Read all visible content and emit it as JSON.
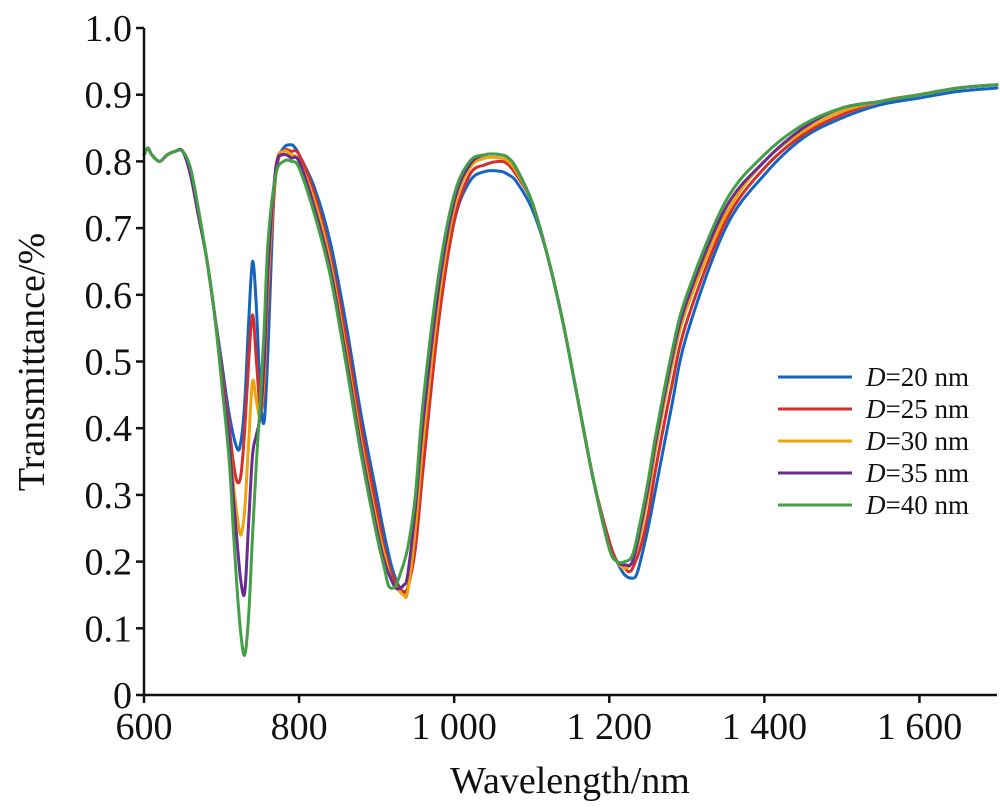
{
  "chart_data": {
    "type": "line",
    "xlabel": "Wavelength/nm",
    "ylabel": "Transmittance/%",
    "xlim": [
      600,
      1700
    ],
    "ylim": [
      0,
      1.0
    ],
    "x_ticks": [
      600,
      800,
      1000,
      1200,
      1400,
      1600
    ],
    "x_tick_labels": [
      "600",
      "800",
      "1 000",
      "1 200",
      "1 400",
      "1 600"
    ],
    "y_ticks": [
      0,
      0.1,
      0.2,
      0.3,
      0.4,
      0.5,
      0.6,
      0.7,
      0.8,
      0.9,
      1.0
    ],
    "y_tick_labels": [
      "0",
      "0.1",
      "0.2",
      "0.3",
      "0.4",
      "0.5",
      "0.6",
      "0.7",
      "0.8",
      "0.9",
      "1.0"
    ],
    "legend": {
      "placement": "right"
    },
    "series": [
      {
        "name": "D=20 nm",
        "italic": "D",
        "suffix": "=20 nm",
        "color": "#1565c0",
        "x": [
          600,
          605,
          610,
          620,
          630,
          640,
          650,
          660,
          670,
          680,
          690,
          700,
          710,
          720,
          725,
          730,
          735,
          740,
          745,
          750,
          755,
          760,
          765,
          770,
          780,
          790,
          795,
          800,
          820,
          840,
          860,
          880,
          900,
          910,
          920,
          930,
          935,
          940,
          945,
          950,
          960,
          980,
          1000,
          1020,
          1040,
          1060,
          1070,
          1080,
          1100,
          1120,
          1140,
          1160,
          1180,
          1200,
          1210,
          1220,
          1230,
          1235,
          1240,
          1250,
          1260,
          1280,
          1300,
          1350,
          1400,
          1450,
          1500,
          1550,
          1600,
          1650,
          1700
        ],
        "y": [
          0.81,
          0.82,
          0.81,
          0.8,
          0.81,
          0.815,
          0.815,
          0.78,
          0.72,
          0.66,
          0.58,
          0.5,
          0.42,
          0.37,
          0.38,
          0.44,
          0.56,
          0.65,
          0.58,
          0.45,
          0.41,
          0.52,
          0.68,
          0.79,
          0.82,
          0.825,
          0.82,
          0.81,
          0.76,
          0.68,
          0.56,
          0.42,
          0.3,
          0.24,
          0.19,
          0.16,
          0.155,
          0.16,
          0.19,
          0.24,
          0.36,
          0.57,
          0.71,
          0.77,
          0.785,
          0.785,
          0.78,
          0.77,
          0.73,
          0.66,
          0.56,
          0.44,
          0.32,
          0.23,
          0.2,
          0.18,
          0.175,
          0.18,
          0.2,
          0.25,
          0.31,
          0.43,
          0.54,
          0.7,
          0.78,
          0.835,
          0.865,
          0.885,
          0.895,
          0.905,
          0.91
        ]
      },
      {
        "name": "D=25 nm",
        "italic": "D",
        "suffix": "=25 nm",
        "color": "#d32f2f",
        "x": [
          600,
          605,
          610,
          620,
          630,
          640,
          650,
          660,
          670,
          680,
          690,
          700,
          710,
          715,
          720,
          725,
          730,
          735,
          740,
          745,
          750,
          755,
          760,
          770,
          780,
          790,
          800,
          820,
          840,
          860,
          880,
          900,
          910,
          920,
          930,
          935,
          940,
          950,
          960,
          980,
          1000,
          1020,
          1040,
          1060,
          1070,
          1080,
          1100,
          1120,
          1140,
          1160,
          1180,
          1200,
          1210,
          1220,
          1225,
          1230,
          1240,
          1250,
          1260,
          1280,
          1300,
          1350,
          1400,
          1450,
          1500,
          1550,
          1600,
          1650,
          1700
        ],
        "y": [
          0.81,
          0.82,
          0.81,
          0.8,
          0.81,
          0.815,
          0.815,
          0.78,
          0.72,
          0.66,
          0.58,
          0.49,
          0.4,
          0.35,
          0.32,
          0.33,
          0.4,
          0.5,
          0.57,
          0.5,
          0.43,
          0.46,
          0.6,
          0.78,
          0.815,
          0.815,
          0.81,
          0.75,
          0.66,
          0.54,
          0.4,
          0.28,
          0.22,
          0.18,
          0.16,
          0.155,
          0.16,
          0.22,
          0.34,
          0.56,
          0.71,
          0.78,
          0.795,
          0.8,
          0.795,
          0.78,
          0.74,
          0.66,
          0.56,
          0.44,
          0.32,
          0.23,
          0.2,
          0.19,
          0.185,
          0.19,
          0.22,
          0.27,
          0.34,
          0.46,
          0.56,
          0.71,
          0.79,
          0.84,
          0.87,
          0.89,
          0.9,
          0.91,
          0.915
        ]
      },
      {
        "name": "D=30 nm",
        "italic": "D",
        "suffix": "=30 nm",
        "color": "#f0a30a",
        "x": [
          600,
          605,
          610,
          620,
          630,
          640,
          650,
          660,
          670,
          680,
          690,
          700,
          710,
          715,
          720,
          725,
          730,
          735,
          740,
          745,
          750,
          755,
          760,
          770,
          780,
          790,
          800,
          820,
          840,
          860,
          880,
          900,
          910,
          920,
          930,
          935,
          940,
          950,
          960,
          980,
          1000,
          1020,
          1040,
          1060,
          1070,
          1080,
          1100,
          1120,
          1140,
          1160,
          1180,
          1200,
          1210,
          1220,
          1230,
          1240,
          1250,
          1260,
          1280,
          1300,
          1350,
          1400,
          1450,
          1500,
          1550,
          1600,
          1650,
          1700
        ],
        "y": [
          0.81,
          0.82,
          0.81,
          0.8,
          0.81,
          0.815,
          0.815,
          0.78,
          0.72,
          0.66,
          0.58,
          0.48,
          0.38,
          0.32,
          0.27,
          0.24,
          0.28,
          0.38,
          0.47,
          0.44,
          0.42,
          0.48,
          0.62,
          0.79,
          0.815,
          0.81,
          0.8,
          0.74,
          0.65,
          0.52,
          0.38,
          0.26,
          0.21,
          0.17,
          0.155,
          0.15,
          0.155,
          0.25,
          0.38,
          0.59,
          0.73,
          0.79,
          0.805,
          0.805,
          0.8,
          0.785,
          0.74,
          0.66,
          0.56,
          0.44,
          0.32,
          0.22,
          0.2,
          0.19,
          0.2,
          0.24,
          0.3,
          0.37,
          0.49,
          0.58,
          0.72,
          0.8,
          0.845,
          0.875,
          0.89,
          0.9,
          0.91,
          0.915
        ]
      },
      {
        "name": "D=35 nm",
        "italic": "D",
        "suffix": "=35 nm",
        "color": "#6a2c91",
        "x": [
          600,
          605,
          610,
          620,
          630,
          640,
          650,
          660,
          670,
          680,
          690,
          700,
          710,
          715,
          720,
          725,
          730,
          735,
          740,
          745,
          750,
          755,
          760,
          770,
          780,
          790,
          800,
          820,
          840,
          860,
          880,
          900,
          910,
          920,
          925,
          930,
          935,
          940,
          950,
          960,
          980,
          1000,
          1020,
          1040,
          1060,
          1070,
          1080,
          1100,
          1120,
          1140,
          1160,
          1180,
          1200,
          1210,
          1220,
          1230,
          1240,
          1250,
          1260,
          1280,
          1300,
          1350,
          1400,
          1450,
          1500,
          1550,
          1600,
          1650,
          1700
        ],
        "y": [
          0.81,
          0.82,
          0.81,
          0.8,
          0.81,
          0.815,
          0.815,
          0.78,
          0.72,
          0.66,
          0.58,
          0.48,
          0.38,
          0.3,
          0.23,
          0.17,
          0.155,
          0.26,
          0.36,
          0.39,
          0.42,
          0.5,
          0.64,
          0.79,
          0.81,
          0.805,
          0.8,
          0.73,
          0.64,
          0.51,
          0.37,
          0.25,
          0.2,
          0.17,
          0.16,
          0.16,
          0.165,
          0.18,
          0.28,
          0.41,
          0.61,
          0.74,
          0.795,
          0.81,
          0.81,
          0.805,
          0.79,
          0.74,
          0.66,
          0.56,
          0.44,
          0.32,
          0.22,
          0.2,
          0.195,
          0.2,
          0.25,
          0.31,
          0.38,
          0.5,
          0.59,
          0.73,
          0.8,
          0.85,
          0.88,
          0.89,
          0.9,
          0.91,
          0.915
        ]
      },
      {
        "name": "D=40 nm",
        "italic": "D",
        "suffix": "=40 nm",
        "color": "#43a047",
        "x": [
          600,
          605,
          610,
          620,
          630,
          640,
          650,
          660,
          670,
          680,
          690,
          700,
          710,
          715,
          720,
          725,
          730,
          735,
          740,
          745,
          750,
          755,
          760,
          770,
          780,
          790,
          800,
          820,
          840,
          860,
          880,
          900,
          910,
          915,
          920,
          925,
          930,
          940,
          950,
          960,
          980,
          1000,
          1020,
          1040,
          1060,
          1070,
          1080,
          1100,
          1120,
          1140,
          1160,
          1180,
          1200,
          1210,
          1220,
          1230,
          1240,
          1250,
          1260,
          1280,
          1300,
          1350,
          1400,
          1450,
          1500,
          1550,
          1600,
          1650,
          1700
        ],
        "y": [
          0.81,
          0.82,
          0.81,
          0.8,
          0.81,
          0.815,
          0.815,
          0.79,
          0.73,
          0.66,
          0.58,
          0.47,
          0.35,
          0.25,
          0.16,
          0.09,
          0.06,
          0.12,
          0.24,
          0.35,
          0.44,
          0.55,
          0.68,
          0.78,
          0.8,
          0.8,
          0.79,
          0.72,
          0.63,
          0.5,
          0.36,
          0.24,
          0.19,
          0.165,
          0.16,
          0.165,
          0.18,
          0.22,
          0.3,
          0.44,
          0.63,
          0.75,
          0.8,
          0.81,
          0.81,
          0.805,
          0.79,
          0.74,
          0.66,
          0.56,
          0.44,
          0.32,
          0.22,
          0.2,
          0.2,
          0.21,
          0.26,
          0.32,
          0.39,
          0.51,
          0.6,
          0.74,
          0.81,
          0.855,
          0.88,
          0.89,
          0.9,
          0.91,
          0.915
        ]
      }
    ]
  }
}
